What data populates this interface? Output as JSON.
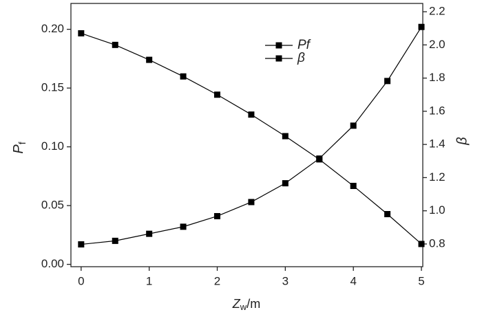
{
  "chart_data": {
    "type": "line",
    "x": [
      0,
      0.5,
      1,
      1.5,
      2,
      2.5,
      3,
      3.5,
      4,
      4.5,
      5
    ],
    "series": [
      {
        "name": "Pf",
        "color": "#000000",
        "values": [
          0.017,
          0.02,
          0.026,
          0.032,
          0.041,
          0.053,
          0.069,
          0.09,
          0.118,
          0.156,
          0.202
        ]
      },
      {
        "name": "β",
        "color": "#000000",
        "axis": "y2",
        "values": [
          2.07,
          2.0,
          1.91,
          1.81,
          1.7,
          1.58,
          1.45,
          1.31,
          1.15,
          0.98,
          0.8
        ]
      }
    ],
    "xlabel": {
      "text": "Z",
      "subscript": "w",
      "suffix": "/m"
    },
    "ylabel": {
      "text": "P",
      "subscript": "f"
    },
    "y2label": "β",
    "xlim": [
      -0.15,
      5.02
    ],
    "xticks": [
      0,
      1,
      2,
      3,
      4,
      5
    ],
    "ylim": [
      -0.002,
      0.222
    ],
    "yticks": [
      {
        "value": 0,
        "label": "0.00"
      },
      {
        "value": 0.05,
        "label": "0.05"
      },
      {
        "value": 0.1,
        "label": "0.10"
      },
      {
        "value": 0.15,
        "label": "0.15"
      },
      {
        "value": 0.2,
        "label": "0.20"
      }
    ],
    "y2lim": [
      0.663,
      2.25
    ],
    "y2ticks": [
      0.8,
      {
        "value": 1,
        "label": "1.0"
      },
      1.2,
      1.4,
      1.6,
      1.8,
      {
        "value": 2,
        "label": "2.0"
      },
      2.2
    ],
    "legend": "upper center"
  }
}
